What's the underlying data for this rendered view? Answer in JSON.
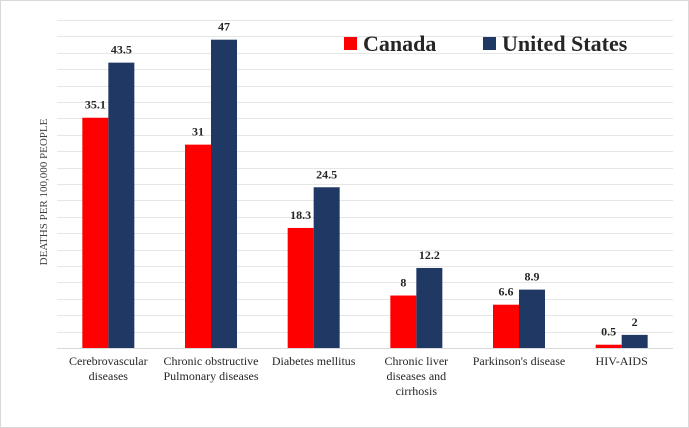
{
  "chart_data": {
    "type": "bar",
    "categories": [
      [
        "Cerebrovascular",
        "diseases"
      ],
      [
        "Chronic obstructive",
        "Pulmonary diseases"
      ],
      [
        "Diabetes mellitus"
      ],
      [
        "Chronic liver",
        "diseases and",
        "cirrhosis"
      ],
      [
        "Parkinson's disease"
      ],
      [
        "HIV-AIDS"
      ]
    ],
    "series": [
      {
        "name": "Canada",
        "color": "#ff0000",
        "values": [
          35.1,
          31,
          18.3,
          8,
          6.6,
          0.5
        ]
      },
      {
        "name": "United States",
        "color": "#1f3864",
        "values": [
          43.5,
          47,
          24.5,
          12.2,
          8.9,
          2
        ]
      }
    ],
    "ylabel": "DEATHS PER 100,000 PEOPLE",
    "ylim": [
      0,
      50
    ],
    "grid": true,
    "legend_position": "top-right"
  }
}
